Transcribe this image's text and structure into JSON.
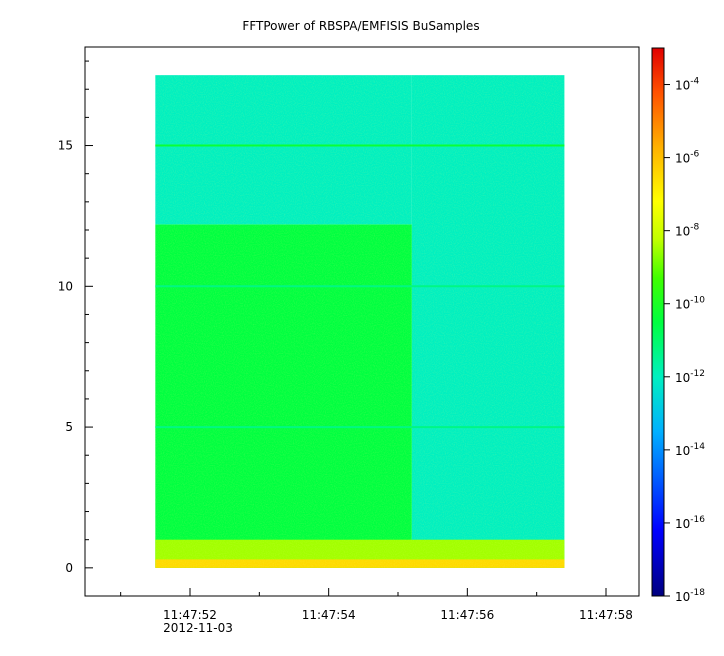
{
  "chart_data": {
    "type": "heatmap",
    "title": "FFTPower of RBSPA/EMFISIS  BuSamples",
    "xlabel": "",
    "ylabel": "",
    "x_tick_labels": [
      "11:47:52",
      "11:47:54",
      "11:47:56",
      "11:47:58"
    ],
    "x_date_label": "2012-11-03",
    "x_data_range": [
      "11:47:51.5",
      "11:47:57.4"
    ],
    "y_tick_labels": [
      "0",
      "5",
      "10",
      "15"
    ],
    "y_ticks": [
      0,
      5,
      10,
      15
    ],
    "ylim": [
      -1,
      18.5
    ],
    "y_data_range": [
      0,
      17.5
    ],
    "colorbar": {
      "scale": "log",
      "range": [
        1e-18,
        0.001
      ],
      "colormap": "rainbow",
      "tick_values": [
        0.0001,
        1e-06,
        1e-08,
        1e-10,
        1e-12,
        1e-14,
        1e-16,
        1e-18
      ],
      "tick_labels": [
        {
          "base": "10",
          "exp": "-4"
        },
        {
          "base": "10",
          "exp": "-6"
        },
        {
          "base": "10",
          "exp": "-8"
        },
        {
          "base": "10",
          "exp": "-10"
        },
        {
          "base": "10",
          "exp": "-12"
        },
        {
          "base": "10",
          "exp": "-14"
        },
        {
          "base": "10",
          "exp": "-16"
        },
        {
          "base": "10",
          "exp": "-18"
        }
      ]
    },
    "regions": [
      {
        "t_start": "11:47:51.5",
        "t_end": "11:47:55.2",
        "f_max": 12.2,
        "log_power": -10.5
      },
      {
        "t_start": "11:47:55.2",
        "t_end": "11:47:57.4",
        "f_max": 17.5,
        "log_power": -12.0
      },
      {
        "t_start": "11:47:51.5",
        "t_end": "11:47:55.2",
        "f_min": 12.2,
        "f_max": 17.5,
        "log_power": -12.0
      },
      {
        "t_start": "11:47:51.5",
        "t_end": "11:47:57.4",
        "f_min": 0,
        "f_max": 1.0,
        "log_power": -8.5
      }
    ],
    "lines": [
      {
        "freq": 15.0,
        "log_power": -10.3
      },
      {
        "freq": 10.0,
        "log_power": -11.3
      },
      {
        "freq": 5.0,
        "log_power": -11.3
      }
    ],
    "grid": false,
    "legend": "none"
  }
}
